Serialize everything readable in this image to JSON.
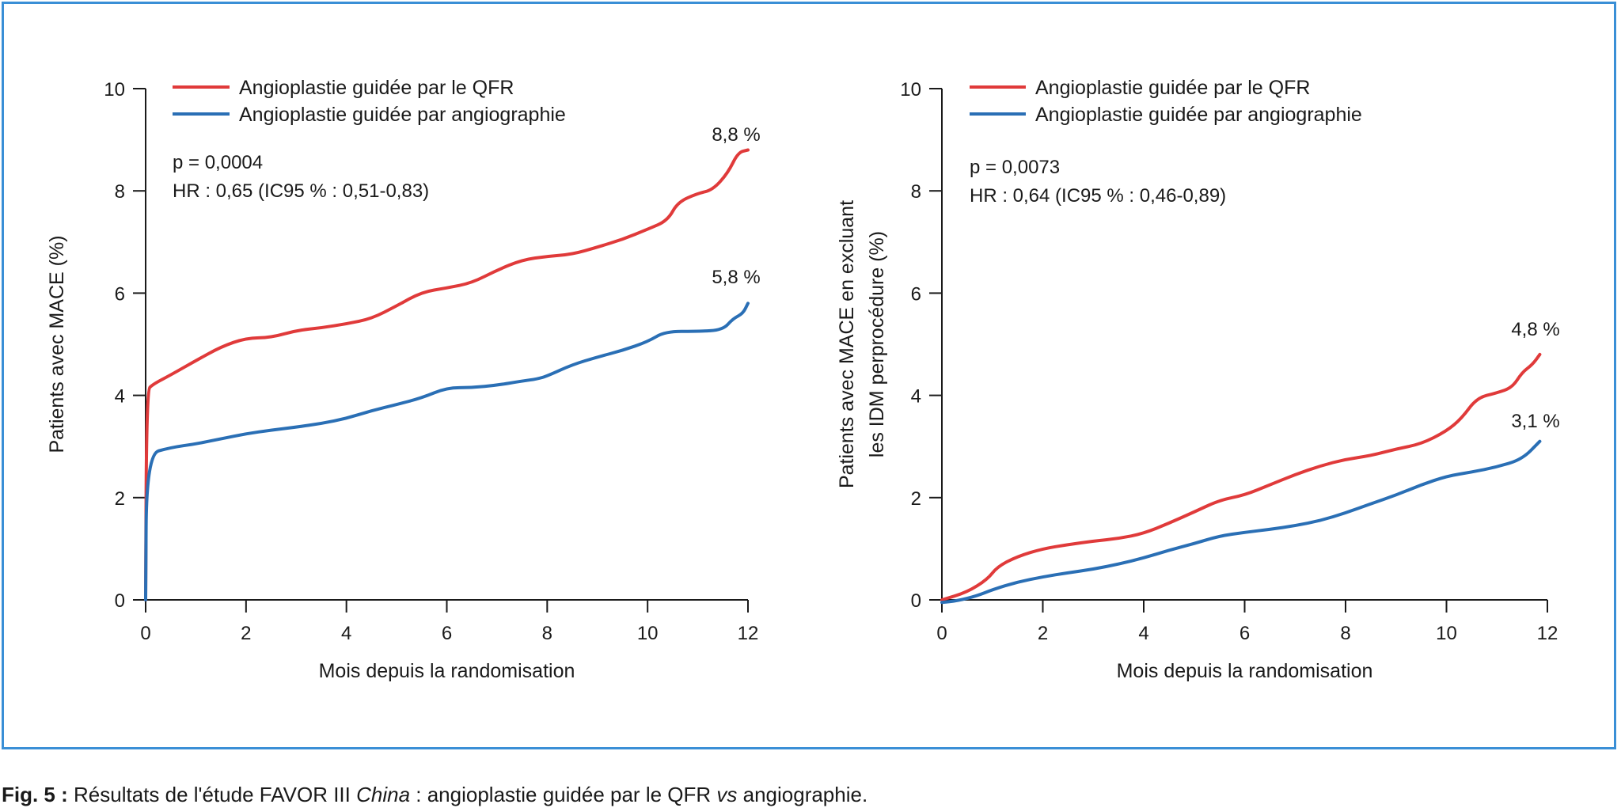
{
  "caption": {
    "fig_label": "Fig. 5 :",
    "text_1": " Résultats de l'étude FAVOR III ",
    "italic_1": "China",
    "text_2": " : angioplastie guidée par le QFR ",
    "italic_2": "vs",
    "text_3": " angiographie."
  },
  "colors": {
    "red": "#e03a3a",
    "blue": "#2a6fb5",
    "frame": "#3a8fd6",
    "axis": "#1a1a1a"
  },
  "chart_data": [
    {
      "type": "line",
      "xlabel": "Mois depuis la randomisation",
      "ylabel": "Patients avec MACE (%)",
      "xlim": [
        0,
        12
      ],
      "ylim": [
        0,
        10
      ],
      "xticks": [
        0,
        2,
        4,
        6,
        8,
        10,
        12
      ],
      "yticks": [
        0,
        2,
        4,
        6,
        8,
        10
      ],
      "legend_position": "top-left",
      "annotations": [
        "p = 0,0004",
        "HR : 0,65 (IC95 % : 0,51-0,83)"
      ],
      "series": [
        {
          "name": "Angioplastie guidée par le QFR",
          "color": "#e03a3a",
          "end_label": "8,8 %",
          "points": [
            [
              0,
              0
            ],
            [
              0.02,
              4.1
            ],
            [
              0.15,
              4.22
            ],
            [
              0.5,
              4.4
            ],
            [
              1,
              4.68
            ],
            [
              1.5,
              4.95
            ],
            [
              2,
              5.12
            ],
            [
              2.5,
              5.13
            ],
            [
              3,
              5.27
            ],
            [
              3.5,
              5.32
            ],
            [
              4,
              5.4
            ],
            [
              4.5,
              5.5
            ],
            [
              5,
              5.75
            ],
            [
              5.5,
              6.02
            ],
            [
              6,
              6.1
            ],
            [
              6.5,
              6.2
            ],
            [
              7,
              6.45
            ],
            [
              7.5,
              6.65
            ],
            [
              8,
              6.72
            ],
            [
              8.5,
              6.76
            ],
            [
              9,
              6.9
            ],
            [
              9.5,
              7.05
            ],
            [
              10,
              7.25
            ],
            [
              10.4,
              7.42
            ],
            [
              10.6,
              7.78
            ],
            [
              11,
              7.95
            ],
            [
              11.3,
              8.02
            ],
            [
              11.6,
              8.35
            ],
            [
              11.8,
              8.75
            ],
            [
              12,
              8.8
            ]
          ]
        },
        {
          "name": "Angioplastie guidée par angiographie",
          "color": "#2a6fb5",
          "end_label": "5,8 %",
          "points": [
            [
              0,
              0
            ],
            [
              0.02,
              2.85
            ],
            [
              0.5,
              2.98
            ],
            [
              1,
              3.05
            ],
            [
              1.5,
              3.15
            ],
            [
              2,
              3.25
            ],
            [
              2.5,
              3.32
            ],
            [
              3,
              3.38
            ],
            [
              3.5,
              3.45
            ],
            [
              4,
              3.55
            ],
            [
              4.5,
              3.7
            ],
            [
              5,
              3.82
            ],
            [
              5.5,
              3.95
            ],
            [
              6,
              4.15
            ],
            [
              6.5,
              4.15
            ],
            [
              7,
              4.2
            ],
            [
              7.5,
              4.28
            ],
            [
              7.8,
              4.32
            ],
            [
              8,
              4.38
            ],
            [
              8.5,
              4.6
            ],
            [
              9,
              4.75
            ],
            [
              9.5,
              4.88
            ],
            [
              10,
              5.05
            ],
            [
              10.35,
              5.25
            ],
            [
              11,
              5.25
            ],
            [
              11.5,
              5.28
            ],
            [
              11.7,
              5.5
            ],
            [
              11.9,
              5.6
            ],
            [
              12,
              5.8
            ]
          ]
        }
      ]
    },
    {
      "type": "line",
      "xlabel": "Mois depuis la randomisation",
      "ylabel": "Patients avec MACE en excluant",
      "ylabel_2": "les IDM perprocédure (%)",
      "xlim": [
        0,
        12
      ],
      "ylim": [
        0,
        10
      ],
      "xticks": [
        0,
        2,
        4,
        6,
        8,
        10,
        12
      ],
      "yticks": [
        0,
        2,
        4,
        6,
        8,
        10
      ],
      "legend_position": "top-left",
      "annotations": [
        "p = 0,0073",
        "HR : 0,64 (IC95 % : 0,46-0,89)"
      ],
      "series": [
        {
          "name": "Angioplastie guidée par le QFR",
          "color": "#e03a3a",
          "end_label": "4,8 %",
          "points": [
            [
              0,
              0
            ],
            [
              0.5,
              0.15
            ],
            [
              0.9,
              0.4
            ],
            [
              1.1,
              0.65
            ],
            [
              1.5,
              0.85
            ],
            [
              2,
              1.0
            ],
            [
              2.5,
              1.08
            ],
            [
              3,
              1.15
            ],
            [
              3.5,
              1.2
            ],
            [
              4,
              1.3
            ],
            [
              4.5,
              1.5
            ],
            [
              5,
              1.72
            ],
            [
              5.5,
              1.95
            ],
            [
              6,
              2.05
            ],
            [
              6.5,
              2.25
            ],
            [
              7,
              2.45
            ],
            [
              7.5,
              2.62
            ],
            [
              8,
              2.75
            ],
            [
              8.5,
              2.82
            ],
            [
              9,
              2.95
            ],
            [
              9.5,
              3.05
            ],
            [
              10,
              3.3
            ],
            [
              10.3,
              3.55
            ],
            [
              10.6,
              3.95
            ],
            [
              11,
              4.05
            ],
            [
              11.3,
              4.15
            ],
            [
              11.5,
              4.45
            ],
            [
              11.7,
              4.6
            ],
            [
              11.85,
              4.8
            ]
          ]
        },
        {
          "name": "Angioplastie guidée par angiographie",
          "color": "#2a6fb5",
          "end_label": "3,1 %",
          "points": [
            [
              0,
              -0.05
            ],
            [
              0.3,
              -0.02
            ],
            [
              0.7,
              0.08
            ],
            [
              1,
              0.2
            ],
            [
              1.5,
              0.35
            ],
            [
              2,
              0.45
            ],
            [
              2.5,
              0.53
            ],
            [
              3,
              0.6
            ],
            [
              3.5,
              0.7
            ],
            [
              4,
              0.82
            ],
            [
              4.5,
              0.97
            ],
            [
              5,
              1.1
            ],
            [
              5.5,
              1.25
            ],
            [
              6,
              1.32
            ],
            [
              6.5,
              1.38
            ],
            [
              7,
              1.45
            ],
            [
              7.5,
              1.55
            ],
            [
              8,
              1.7
            ],
            [
              8.5,
              1.88
            ],
            [
              9,
              2.05
            ],
            [
              9.5,
              2.25
            ],
            [
              10,
              2.42
            ],
            [
              10.5,
              2.5
            ],
            [
              11,
              2.6
            ],
            [
              11.5,
              2.75
            ],
            [
              11.85,
              3.1
            ]
          ]
        }
      ]
    }
  ]
}
